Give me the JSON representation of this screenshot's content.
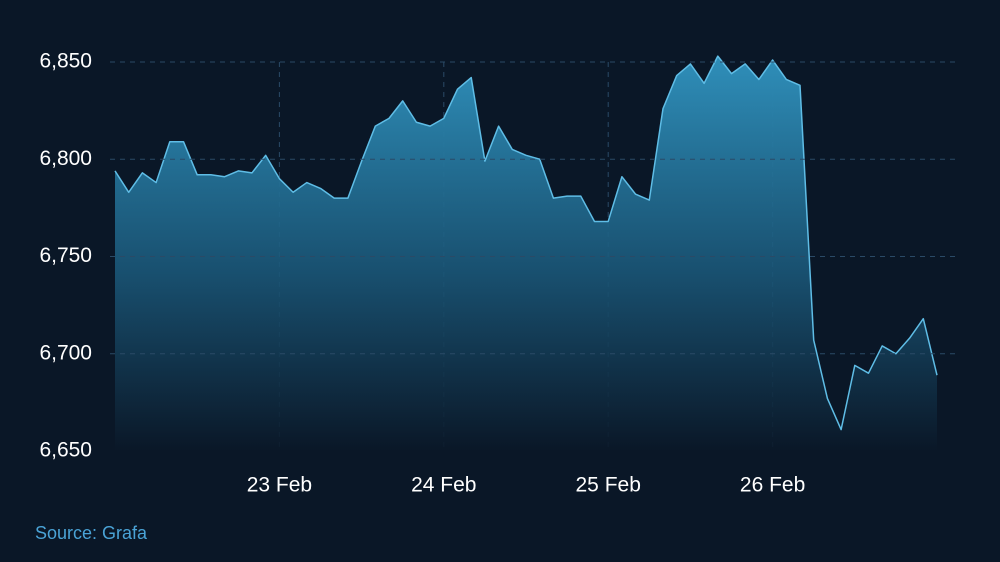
{
  "chart_data": {
    "type": "area",
    "source": "Source: Grafa",
    "categories": [
      null,
      null,
      null,
      null,
      null,
      null,
      null,
      null,
      null,
      null,
      null,
      null,
      "23 Feb",
      null,
      null,
      null,
      null,
      null,
      null,
      null,
      null,
      null,
      null,
      null,
      "24 Feb",
      null,
      null,
      null,
      null,
      null,
      null,
      null,
      null,
      null,
      null,
      null,
      "25 Feb",
      null,
      null,
      null,
      null,
      null,
      null,
      null,
      null,
      null,
      null,
      null,
      "26 Feb",
      null,
      null,
      null,
      null,
      null,
      null,
      null,
      null,
      null,
      null,
      null,
      null
    ],
    "values": [
      6794,
      6783,
      6793,
      6788,
      6809,
      6809,
      6792,
      6792,
      6791,
      6794,
      6793,
      6802,
      6790,
      6783,
      6788,
      6785,
      6780,
      6780,
      6799,
      6817,
      6821,
      6830,
      6819,
      6817,
      6821,
      6836,
      6842,
      6799,
      6817,
      6805,
      6802,
      6800,
      6780,
      6781,
      6781,
      6768,
      6768,
      6791,
      6782,
      6779,
      6826,
      6843,
      6849,
      6839,
      6853,
      6844,
      6849,
      6841,
      6851,
      6841,
      6838,
      6707,
      6677,
      6661,
      6694,
      6690,
      6704,
      6700,
      6708,
      6718,
      6689
    ],
    "color": "#5fbde6",
    "ylim": [
      6650,
      6860
    ],
    "yticks": [
      {
        "value": 6650,
        "label": "6,650"
      },
      {
        "value": 6700,
        "label": "6,700"
      },
      {
        "value": 6750,
        "label": "6,750"
      },
      {
        "value": 6800,
        "label": "6,800"
      },
      {
        "value": 6850,
        "label": "6,850"
      }
    ],
    "grid": true
  }
}
